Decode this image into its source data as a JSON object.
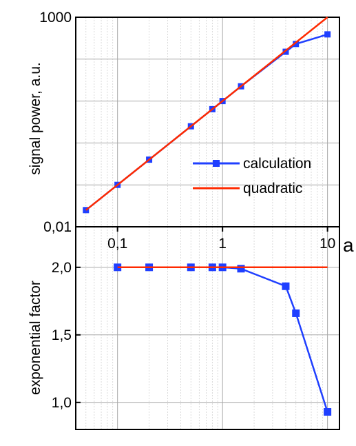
{
  "chart_data": [
    {
      "type": "line",
      "panel": "top",
      "ylabel": "signal power, a.u.",
      "xscale": "log",
      "yscale": "log",
      "xlim": [
        0.04,
        13
      ],
      "ylim": [
        0.01,
        1000
      ],
      "ytick_labels": [
        {
          "value": 1000,
          "label": "1000"
        },
        {
          "value": 0.01,
          "label": "0,01"
        }
      ],
      "grid": true,
      "legend_position": "lower-right",
      "series": [
        {
          "name": "calculation",
          "color": "#1f3fff",
          "marker": "square",
          "x": [
            0.05,
            0.1,
            0.2,
            0.5,
            0.8,
            1.0,
            1.5,
            4.0,
            5.0,
            10.0
          ],
          "y": [
            0.025,
            0.1,
            0.4,
            2.5,
            6.4,
            10.0,
            22.5,
            150,
            230,
            390
          ]
        },
        {
          "name": "quadratic",
          "color": "#ff2a00",
          "marker": "none",
          "x": [
            0.05,
            10.0
          ],
          "y": [
            0.025,
            1000
          ]
        }
      ]
    },
    {
      "type": "line",
      "panel": "bottom",
      "xlabel": "a",
      "ylabel": "exponential factor",
      "xscale": "log",
      "xlim": [
        0.04,
        13
      ],
      "ylim": [
        0.8,
        2.3
      ],
      "xtick_labels": [
        {
          "value": 0.1,
          "label": "0,1"
        },
        {
          "value": 1,
          "label": "1"
        },
        {
          "value": 10,
          "label": "10"
        }
      ],
      "ytick_labels": [
        {
          "value": 2.0,
          "label": "2,0"
        },
        {
          "value": 1.5,
          "label": "1,5"
        },
        {
          "value": 1.0,
          "label": "1,0"
        }
      ],
      "grid": true,
      "series": [
        {
          "color": "#1f3fff",
          "marker": "square",
          "x": [
            0.1,
            0.2,
            0.5,
            0.8,
            1.0,
            1.5,
            4.0,
            5.0,
            10.0
          ],
          "y": [
            2.0,
            2.0,
            2.0,
            2.0,
            2.0,
            1.99,
            1.86,
            1.66,
            0.93
          ]
        },
        {
          "color": "#ff2a00",
          "marker": "none",
          "x": [
            0.1,
            10.0
          ],
          "y": [
            2.0,
            2.0
          ]
        }
      ]
    }
  ]
}
